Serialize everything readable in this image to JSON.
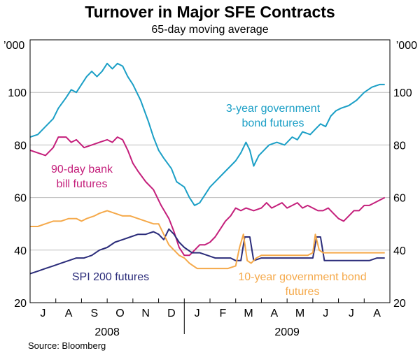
{
  "chart_data": {
    "type": "line",
    "title": "Turnover in Major SFE Contracts",
    "subtitle": "65-day moving average",
    "unit_left": "’000",
    "unit_right": "’000",
    "ylim": [
      20,
      120
    ],
    "yticks": [
      20,
      40,
      60,
      80,
      100
    ],
    "grid": "horizontal",
    "months": [
      "J",
      "A",
      "S",
      "O",
      "N",
      "D",
      "J",
      "F",
      "M",
      "A",
      "M",
      "J",
      "J",
      "A"
    ],
    "years": [
      {
        "label": "2008",
        "start": 0,
        "end": 6
      },
      {
        "label": "2009",
        "start": 6,
        "end": 14
      }
    ],
    "x_range": [
      0,
      14
    ],
    "source": "Source: Bloomberg",
    "series": [
      {
        "name": "3-year government bond futures",
        "label_lines": [
          "3-year government",
          "bond futures"
        ],
        "color": "#1b9fc6",
        "points": [
          [
            0,
            83
          ],
          [
            0.3,
            84
          ],
          [
            0.6,
            87
          ],
          [
            0.9,
            90
          ],
          [
            1.1,
            94
          ],
          [
            1.4,
            98
          ],
          [
            1.6,
            101
          ],
          [
            1.8,
            100
          ],
          [
            2.0,
            103
          ],
          [
            2.2,
            106
          ],
          [
            2.4,
            108
          ],
          [
            2.6,
            106
          ],
          [
            2.8,
            108
          ],
          [
            3.0,
            111
          ],
          [
            3.2,
            109
          ],
          [
            3.4,
            111
          ],
          [
            3.6,
            110
          ],
          [
            3.8,
            106
          ],
          [
            4.0,
            103
          ],
          [
            4.3,
            97
          ],
          [
            4.6,
            89
          ],
          [
            4.8,
            83
          ],
          [
            5.0,
            78
          ],
          [
            5.2,
            75
          ],
          [
            5.5,
            71
          ],
          [
            5.7,
            66
          ],
          [
            6.0,
            64
          ],
          [
            6.2,
            60
          ],
          [
            6.4,
            57
          ],
          [
            6.6,
            58
          ],
          [
            6.8,
            61
          ],
          [
            7.0,
            64
          ],
          [
            7.3,
            67
          ],
          [
            7.6,
            70
          ],
          [
            7.8,
            72
          ],
          [
            8.0,
            74
          ],
          [
            8.2,
            77
          ],
          [
            8.4,
            81
          ],
          [
            8.55,
            78
          ],
          [
            8.7,
            72
          ],
          [
            8.9,
            76
          ],
          [
            9.1,
            78
          ],
          [
            9.3,
            80
          ],
          [
            9.6,
            81
          ],
          [
            9.9,
            80
          ],
          [
            10.2,
            83
          ],
          [
            10.4,
            82
          ],
          [
            10.6,
            85
          ],
          [
            10.9,
            84
          ],
          [
            11.1,
            86
          ],
          [
            11.3,
            88
          ],
          [
            11.5,
            87
          ],
          [
            11.7,
            91
          ],
          [
            11.9,
            93
          ],
          [
            12.1,
            94
          ],
          [
            12.4,
            95
          ],
          [
            12.7,
            97
          ],
          [
            13.0,
            100
          ],
          [
            13.3,
            102
          ],
          [
            13.6,
            103
          ],
          [
            13.8,
            103
          ]
        ]
      },
      {
        "name": "90-day bank bill futures",
        "label_lines": [
          "90-day bank",
          "bill futures"
        ],
        "color": "#c41f7b",
        "points": [
          [
            0,
            78
          ],
          [
            0.3,
            77
          ],
          [
            0.6,
            76
          ],
          [
            0.9,
            79
          ],
          [
            1.1,
            83
          ],
          [
            1.4,
            83
          ],
          [
            1.6,
            81
          ],
          [
            1.8,
            82
          ],
          [
            2.1,
            79
          ],
          [
            2.4,
            80
          ],
          [
            2.7,
            81
          ],
          [
            3.0,
            82
          ],
          [
            3.2,
            81
          ],
          [
            3.4,
            83
          ],
          [
            3.6,
            82
          ],
          [
            3.8,
            78
          ],
          [
            4.0,
            73
          ],
          [
            4.2,
            70
          ],
          [
            4.5,
            66
          ],
          [
            4.8,
            63
          ],
          [
            5.1,
            57
          ],
          [
            5.4,
            52
          ],
          [
            5.6,
            47
          ],
          [
            5.8,
            41
          ],
          [
            6.0,
            38
          ],
          [
            6.2,
            38
          ],
          [
            6.4,
            40
          ],
          [
            6.6,
            42
          ],
          [
            6.8,
            42
          ],
          [
            7.0,
            43
          ],
          [
            7.2,
            45
          ],
          [
            7.4,
            48
          ],
          [
            7.6,
            51
          ],
          [
            7.8,
            53
          ],
          [
            8.0,
            56
          ],
          [
            8.2,
            55
          ],
          [
            8.4,
            56
          ],
          [
            8.7,
            55
          ],
          [
            9.0,
            56
          ],
          [
            9.2,
            58
          ],
          [
            9.4,
            56
          ],
          [
            9.6,
            57
          ],
          [
            9.8,
            58
          ],
          [
            10.0,
            56
          ],
          [
            10.2,
            57
          ],
          [
            10.4,
            58
          ],
          [
            10.6,
            56
          ],
          [
            10.8,
            57
          ],
          [
            11.0,
            56
          ],
          [
            11.2,
            55
          ],
          [
            11.4,
            55
          ],
          [
            11.6,
            56
          ],
          [
            11.8,
            54
          ],
          [
            12.0,
            52
          ],
          [
            12.2,
            51
          ],
          [
            12.4,
            53
          ],
          [
            12.6,
            55
          ],
          [
            12.8,
            55
          ],
          [
            13.0,
            57
          ],
          [
            13.2,
            57
          ],
          [
            13.4,
            58
          ],
          [
            13.6,
            59
          ],
          [
            13.8,
            60
          ]
        ]
      },
      {
        "name": "SPI 200 futures",
        "label_lines": [
          "SPI 200 futures"
        ],
        "color": "#2b2c7a",
        "points": [
          [
            0,
            31
          ],
          [
            0.3,
            32
          ],
          [
            0.6,
            33
          ],
          [
            0.9,
            34
          ],
          [
            1.2,
            35
          ],
          [
            1.5,
            36
          ],
          [
            1.8,
            37
          ],
          [
            2.1,
            37
          ],
          [
            2.4,
            38
          ],
          [
            2.7,
            40
          ],
          [
            3.0,
            41
          ],
          [
            3.3,
            43
          ],
          [
            3.6,
            44
          ],
          [
            3.9,
            45
          ],
          [
            4.2,
            46
          ],
          [
            4.5,
            46
          ],
          [
            4.8,
            47
          ],
          [
            5.0,
            46
          ],
          [
            5.2,
            44
          ],
          [
            5.4,
            48
          ],
          [
            5.6,
            46
          ],
          [
            5.8,
            43
          ],
          [
            6.0,
            41
          ],
          [
            6.3,
            39
          ],
          [
            6.6,
            39
          ],
          [
            6.9,
            38
          ],
          [
            7.2,
            37
          ],
          [
            7.5,
            37
          ],
          [
            7.8,
            37
          ],
          [
            8.0,
            36
          ],
          [
            8.2,
            36
          ],
          [
            8.35,
            45
          ],
          [
            8.55,
            45
          ],
          [
            8.7,
            36
          ],
          [
            9.0,
            37
          ],
          [
            9.3,
            37
          ],
          [
            9.6,
            37
          ],
          [
            9.9,
            37
          ],
          [
            10.2,
            37
          ],
          [
            10.5,
            37
          ],
          [
            10.8,
            37
          ],
          [
            11.0,
            37
          ],
          [
            11.15,
            45
          ],
          [
            11.3,
            45
          ],
          [
            11.45,
            36
          ],
          [
            11.7,
            36
          ],
          [
            12.0,
            36
          ],
          [
            12.3,
            36
          ],
          [
            12.6,
            36
          ],
          [
            12.9,
            36
          ],
          [
            13.2,
            36
          ],
          [
            13.5,
            37
          ],
          [
            13.8,
            37
          ]
        ]
      },
      {
        "name": "10-year government bond futures",
        "label_lines": [
          "10-year government bond",
          "futures"
        ],
        "color": "#f5a94a",
        "points": [
          [
            0,
            49
          ],
          [
            0.3,
            49
          ],
          [
            0.6,
            50
          ],
          [
            0.9,
            51
          ],
          [
            1.2,
            51
          ],
          [
            1.5,
            52
          ],
          [
            1.8,
            52
          ],
          [
            2.0,
            51
          ],
          [
            2.2,
            52
          ],
          [
            2.5,
            53
          ],
          [
            2.7,
            54
          ],
          [
            3.0,
            55
          ],
          [
            3.3,
            54
          ],
          [
            3.6,
            53
          ],
          [
            3.9,
            53
          ],
          [
            4.2,
            52
          ],
          [
            4.5,
            51
          ],
          [
            4.8,
            50
          ],
          [
            5.0,
            50
          ],
          [
            5.2,
            46
          ],
          [
            5.4,
            42
          ],
          [
            5.6,
            40
          ],
          [
            5.8,
            38
          ],
          [
            6.0,
            37
          ],
          [
            6.2,
            35
          ],
          [
            6.5,
            33
          ],
          [
            6.8,
            33
          ],
          [
            7.1,
            33
          ],
          [
            7.4,
            33
          ],
          [
            7.7,
            33
          ],
          [
            8.0,
            34
          ],
          [
            8.15,
            41
          ],
          [
            8.3,
            46
          ],
          [
            8.45,
            36
          ],
          [
            8.6,
            35
          ],
          [
            8.8,
            37
          ],
          [
            9.0,
            38
          ],
          [
            9.3,
            38
          ],
          [
            9.6,
            38
          ],
          [
            9.9,
            38
          ],
          [
            10.2,
            38
          ],
          [
            10.5,
            38
          ],
          [
            10.8,
            38
          ],
          [
            11.0,
            39
          ],
          [
            11.1,
            46
          ],
          [
            11.25,
            40
          ],
          [
            11.4,
            39
          ],
          [
            11.7,
            39
          ],
          [
            12.0,
            39
          ],
          [
            12.3,
            39
          ],
          [
            12.6,
            39
          ],
          [
            12.9,
            39
          ],
          [
            13.2,
            39
          ],
          [
            13.5,
            39
          ],
          [
            13.8,
            39
          ]
        ]
      }
    ]
  }
}
